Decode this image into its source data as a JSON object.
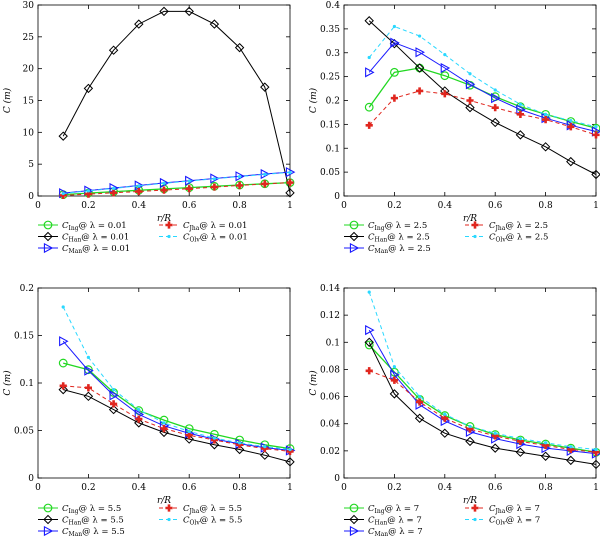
{
  "chart_data": [
    {
      "type": "line",
      "xlabel": "r/R",
      "ylabel": "C (m)",
      "xlim": [
        0,
        1
      ],
      "ylim": [
        0,
        30
      ],
      "xticks": [
        "0",
        "0.2",
        "0.4",
        "0.6",
        "0.8",
        "1"
      ],
      "yticks": [
        "0",
        "5",
        "10",
        "15",
        "20",
        "25",
        "30"
      ],
      "legend_placement": "below",
      "series": [
        {
          "name": "C_Ing@ λ = 0.01",
          "sub": "Ing",
          "suffix": "@ λ = 0.01",
          "style": "ing",
          "x": [
            0.1,
            0.2,
            0.3,
            0.4,
            0.5,
            0.6,
            0.7,
            0.8,
            0.9,
            1.0
          ],
          "y": [
            0.22,
            0.45,
            0.68,
            0.9,
            1.12,
            1.32,
            1.52,
            1.72,
            1.92,
            2.1
          ]
        },
        {
          "name": "C_Han@ λ = 0.01",
          "sub": "Han",
          "suffix": "@ λ = 0.01",
          "style": "han",
          "x": [
            0.1,
            0.2,
            0.3,
            0.4,
            0.5,
            0.6,
            0.7,
            0.8,
            0.9,
            1.0
          ],
          "y": [
            9.4,
            16.9,
            22.9,
            27.0,
            29.0,
            29.0,
            27.0,
            23.3,
            17.1,
            0.5
          ]
        },
        {
          "name": "C_Man@ λ = 0.01",
          "sub": "Man",
          "suffix": "@ λ = 0.01",
          "style": "man",
          "x": [
            0.1,
            0.2,
            0.3,
            0.4,
            0.5,
            0.6,
            0.7,
            0.8,
            0.9,
            1.0
          ],
          "y": [
            0.45,
            0.85,
            1.25,
            1.65,
            2.05,
            2.4,
            2.75,
            3.1,
            3.45,
            3.75
          ]
        },
        {
          "name": "C_Jha@ λ = 0.01",
          "sub": "Jha",
          "suffix": "@ λ = 0.01",
          "style": "jha",
          "x": [
            0.1,
            0.2,
            0.3,
            0.4,
            0.5,
            0.6,
            0.7,
            0.8,
            0.9,
            1.0
          ],
          "y": [
            0.1,
            0.3,
            0.5,
            0.7,
            0.92,
            1.15,
            1.4,
            1.65,
            1.9,
            2.1
          ]
        },
        {
          "name": "C_Olv@ λ = 0.01",
          "sub": "Olv",
          "suffix": "@ λ = 0.01",
          "style": "olv",
          "x": [
            0.1,
            0.2,
            0.3,
            0.4,
            0.5,
            0.6,
            0.7,
            0.8,
            0.9,
            1.0
          ],
          "y": [
            0.4,
            0.8,
            1.2,
            1.6,
            2.0,
            2.35,
            2.7,
            3.05,
            3.4,
            3.7
          ]
        }
      ]
    },
    {
      "type": "line",
      "xlabel": "r/R",
      "ylabel": "C (m)",
      "xlim": [
        0,
        1
      ],
      "ylim": [
        0,
        0.4
      ],
      "xticks": [
        "0",
        "0.2",
        "0.4",
        "0.6",
        "0.8",
        "1"
      ],
      "yticks": [
        "0",
        "0.05",
        "0.1",
        "0.15",
        "0.2",
        "0.25",
        "0.3",
        "0.35",
        "0.4"
      ],
      "legend_placement": "below",
      "series": [
        {
          "name": "C_Ing@ λ = 2.5",
          "sub": "Ing",
          "suffix": "@ λ = 2.5",
          "style": "ing",
          "x": [
            0.1,
            0.2,
            0.3,
            0.4,
            0.5,
            0.6,
            0.7,
            0.8,
            0.9,
            1.0
          ],
          "y": [
            0.186,
            0.259,
            0.268,
            0.252,
            0.232,
            0.208,
            0.187,
            0.171,
            0.156,
            0.142
          ]
        },
        {
          "name": "C_Han@ λ = 2.5",
          "sub": "Han",
          "suffix": "@ λ = 2.5",
          "style": "han",
          "x": [
            0.1,
            0.2,
            0.3,
            0.4,
            0.5,
            0.6,
            0.7,
            0.8,
            0.9,
            1.0
          ],
          "y": [
            0.367,
            0.319,
            0.268,
            0.22,
            0.185,
            0.154,
            0.128,
            0.103,
            0.072,
            0.045
          ]
        },
        {
          "name": "C_Man@ λ = 2.5",
          "sub": "Man",
          "suffix": "@ λ = 2.5",
          "style": "man",
          "x": [
            0.1,
            0.2,
            0.3,
            0.4,
            0.5,
            0.6,
            0.7,
            0.8,
            0.9,
            1.0
          ],
          "y": [
            0.259,
            0.321,
            0.301,
            0.268,
            0.234,
            0.205,
            0.181,
            0.163,
            0.148,
            0.135
          ]
        },
        {
          "name": "C_Jha@ λ = 2.5",
          "sub": "Jha",
          "suffix": "@ λ = 2.5",
          "style": "jha",
          "x": [
            0.1,
            0.2,
            0.3,
            0.4,
            0.5,
            0.6,
            0.7,
            0.8,
            0.9,
            1.0
          ],
          "y": [
            0.148,
            0.205,
            0.22,
            0.214,
            0.2,
            0.185,
            0.171,
            0.16,
            0.145,
            0.128
          ]
        },
        {
          "name": "C_Olv@ λ = 2.5",
          "sub": "Olv",
          "suffix": "@ λ = 2.5",
          "style": "olv",
          "x": [
            0.1,
            0.2,
            0.3,
            0.4,
            0.5,
            0.6,
            0.7,
            0.8,
            0.9,
            1.0
          ],
          "y": [
            0.29,
            0.355,
            0.335,
            0.296,
            0.256,
            0.222,
            0.192,
            0.171,
            0.158,
            0.145
          ]
        }
      ]
    },
    {
      "type": "line",
      "xlabel": "r/R",
      "ylabel": "C (m)",
      "xlim": [
        0,
        1
      ],
      "ylim": [
        0,
        0.2
      ],
      "xticks": [
        "0",
        "0.2",
        "0.4",
        "0.6",
        "0.8",
        "1"
      ],
      "yticks": [
        "0",
        "0.05",
        "0.1",
        "0.15",
        "0.2"
      ],
      "legend_placement": "below",
      "series": [
        {
          "name": "C_Ing@ λ = 5.5",
          "sub": "Ing",
          "suffix": "@ λ = 5.5",
          "style": "ing",
          "x": [
            0.1,
            0.2,
            0.3,
            0.4,
            0.5,
            0.6,
            0.7,
            0.8,
            0.9,
            1.0
          ],
          "y": [
            0.121,
            0.114,
            0.09,
            0.071,
            0.061,
            0.052,
            0.046,
            0.04,
            0.035,
            0.031
          ]
        },
        {
          "name": "C_Han@ λ = 5.5",
          "sub": "Han",
          "suffix": "@ λ = 5.5",
          "style": "han",
          "x": [
            0.1,
            0.2,
            0.3,
            0.4,
            0.5,
            0.6,
            0.7,
            0.8,
            0.9,
            1.0
          ],
          "y": [
            0.093,
            0.086,
            0.072,
            0.058,
            0.048,
            0.041,
            0.035,
            0.03,
            0.024,
            0.017
          ]
        },
        {
          "name": "C_Man@ λ = 5.5",
          "sub": "Man",
          "suffix": "@ λ = 5.5",
          "style": "man",
          "x": [
            0.1,
            0.2,
            0.3,
            0.4,
            0.5,
            0.6,
            0.7,
            0.8,
            0.9,
            1.0
          ],
          "y": [
            0.144,
            0.113,
            0.087,
            0.067,
            0.055,
            0.047,
            0.041,
            0.036,
            0.032,
            0.029
          ]
        },
        {
          "name": "C_Jha@ λ = 5.5",
          "sub": "Jha",
          "suffix": "@ λ = 5.5",
          "style": "jha",
          "x": [
            0.1,
            0.2,
            0.3,
            0.4,
            0.5,
            0.6,
            0.7,
            0.8,
            0.9,
            1.0
          ],
          "y": [
            0.097,
            0.095,
            0.078,
            0.062,
            0.052,
            0.045,
            0.04,
            0.035,
            0.031,
            0.028
          ]
        },
        {
          "name": "C_Olv@ λ = 5.5",
          "sub": "Olv",
          "suffix": "@ λ = 5.5",
          "style": "olv",
          "x": [
            0.1,
            0.2,
            0.3,
            0.4,
            0.5,
            0.6,
            0.7,
            0.8,
            0.9,
            1.0
          ],
          "y": [
            0.18,
            0.127,
            0.093,
            0.072,
            0.058,
            0.049,
            0.042,
            0.037,
            0.033,
            0.03
          ]
        }
      ]
    },
    {
      "type": "line",
      "xlabel": "r/R",
      "ylabel": "C (m)",
      "xlim": [
        0,
        1
      ],
      "ylim": [
        0,
        0.14
      ],
      "xticks": [
        "0",
        "0.2",
        "0.4",
        "0.6",
        "0.8",
        "1"
      ],
      "yticks": [
        "0",
        "0.02",
        "0.04",
        "0.06",
        "0.08",
        "0.1",
        "0.12",
        "0.14"
      ],
      "legend_placement": "below",
      "series": [
        {
          "name": "C_Ing@ λ = 7",
          "sub": "Ing",
          "suffix": "@ λ = 7",
          "style": "ing",
          "x": [
            0.1,
            0.2,
            0.3,
            0.4,
            0.5,
            0.6,
            0.7,
            0.8,
            0.9,
            1.0
          ],
          "y": [
            0.098,
            0.078,
            0.058,
            0.046,
            0.038,
            0.032,
            0.028,
            0.025,
            0.022,
            0.019
          ]
        },
        {
          "name": "C_Han@ λ = 7",
          "sub": "Han",
          "suffix": "@ λ = 7",
          "style": "han",
          "x": [
            0.1,
            0.2,
            0.3,
            0.4,
            0.5,
            0.6,
            0.7,
            0.8,
            0.9,
            1.0
          ],
          "y": [
            0.1,
            0.062,
            0.044,
            0.033,
            0.027,
            0.022,
            0.019,
            0.016,
            0.013,
            0.01
          ]
        },
        {
          "name": "C_Man@ λ = 7",
          "sub": "Man",
          "suffix": "@ λ = 7",
          "style": "man",
          "x": [
            0.1,
            0.2,
            0.3,
            0.4,
            0.5,
            0.6,
            0.7,
            0.8,
            0.9,
            1.0
          ],
          "y": [
            0.109,
            0.076,
            0.054,
            0.042,
            0.034,
            0.029,
            0.025,
            0.022,
            0.02,
            0.018
          ]
        },
        {
          "name": "C_Jha@ λ = 7",
          "sub": "Jha",
          "suffix": "@ λ = 7",
          "style": "jha",
          "x": [
            0.1,
            0.2,
            0.3,
            0.4,
            0.5,
            0.6,
            0.7,
            0.8,
            0.9,
            1.0
          ],
          "y": [
            0.079,
            0.072,
            0.056,
            0.044,
            0.036,
            0.031,
            0.027,
            0.024,
            0.021,
            0.019
          ]
        },
        {
          "name": "C_Olv@ λ = 7",
          "sub": "Olv",
          "suffix": "@ λ = 7",
          "style": "olv",
          "x": [
            0.1,
            0.2,
            0.3,
            0.4,
            0.5,
            0.6,
            0.7,
            0.8,
            0.9,
            1.0
          ],
          "y": [
            0.137,
            0.082,
            0.06,
            0.047,
            0.038,
            0.033,
            0.029,
            0.026,
            0.023,
            0.021
          ]
        }
      ]
    }
  ],
  "styles": {
    "ing": {
      "color": "#22d822",
      "marker": "circle",
      "dash": ""
    },
    "han": {
      "color": "#000000",
      "marker": "diamond",
      "dash": ""
    },
    "man": {
      "color": "#1a1aff",
      "marker": "triangle",
      "dash": ""
    },
    "jha": {
      "color": "#e0261e",
      "marker": "cross",
      "dash": "4,3"
    },
    "olv": {
      "color": "#2ad8ff",
      "marker": "dot",
      "dash": "4,3"
    }
  }
}
